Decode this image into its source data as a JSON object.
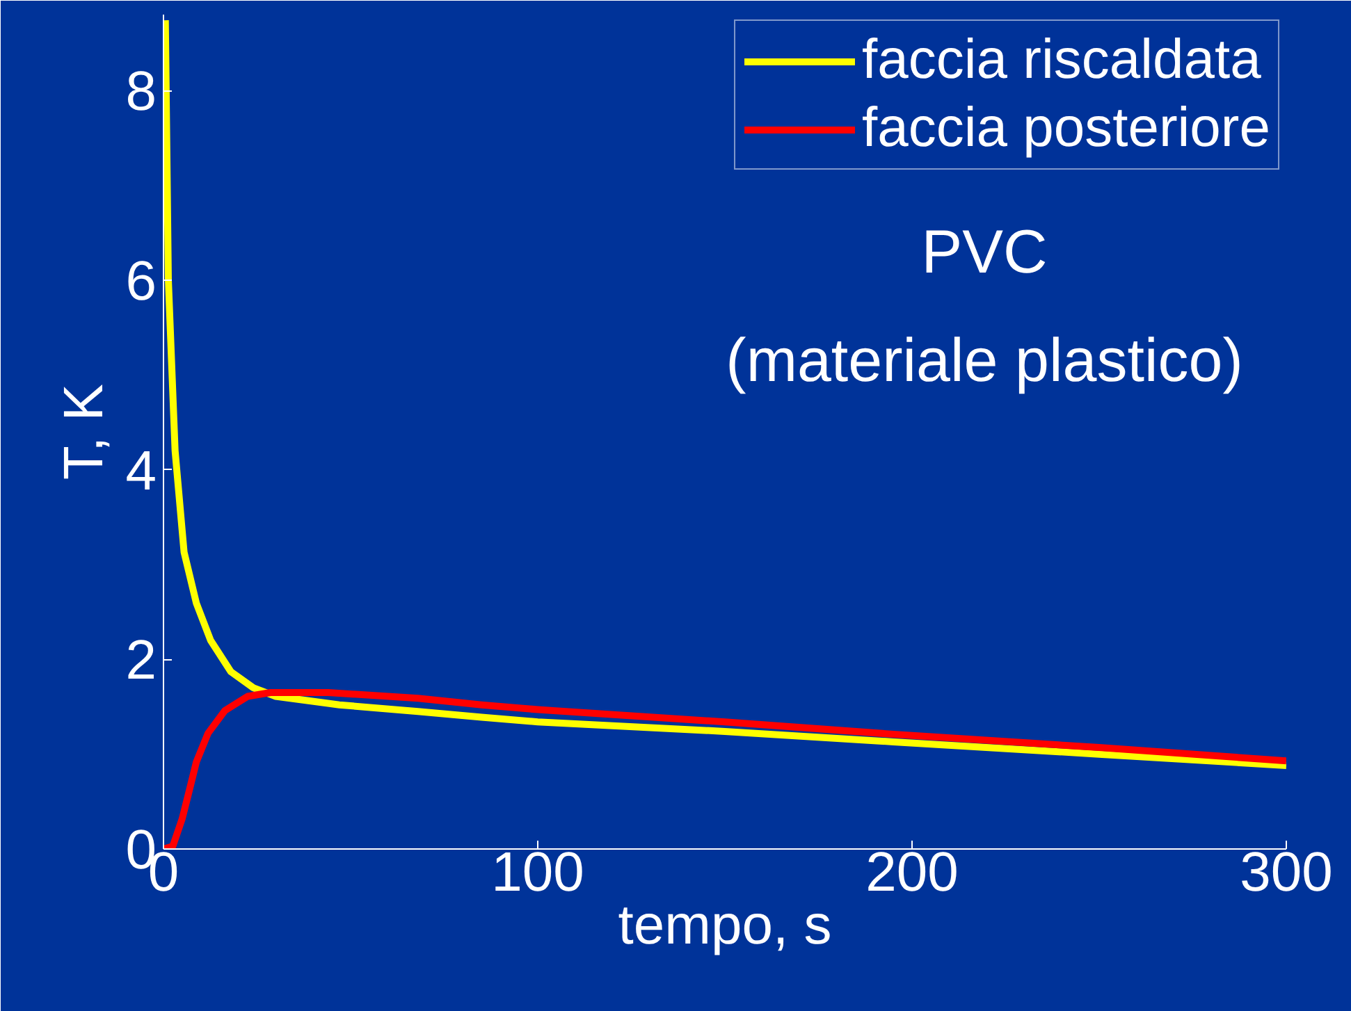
{
  "chart_data": {
    "type": "line",
    "xlabel": "tempo, s",
    "ylabel": "T, K",
    "annotations": [
      "PVC\n(materiale plastico)"
    ],
    "xlim": [
      0,
      300
    ],
    "ylim": [
      0,
      8.8
    ],
    "xticks": [
      0,
      100,
      200,
      300
    ],
    "yticks": [
      0,
      2,
      4,
      6,
      8
    ],
    "grid": false,
    "legend": "top right",
    "marker": "none",
    "line_style": "solid",
    "series": [
      {
        "name": "faccia riscaldata",
        "color": "#ffff00",
        "x": [
          0.5,
          1.3,
          3.1,
          5.5,
          8.8,
          12.6,
          18,
          24,
          30,
          47,
          68,
          85,
          100,
          150,
          195,
          250,
          300
        ],
        "values": [
          8.74,
          6.0,
          4.2,
          3.13,
          2.59,
          2.2,
          1.87,
          1.7,
          1.61,
          1.52,
          1.45,
          1.39,
          1.34,
          1.24,
          1.13,
          1.0,
          0.88
        ]
      },
      {
        "name": "faccia posteriore",
        "color": "#ff0000",
        "x": [
          0,
          2.5,
          5,
          6.6,
          8.8,
          11.9,
          16.4,
          22.5,
          28.6,
          44,
          68,
          85,
          100,
          150,
          195,
          250,
          300
        ],
        "values": [
          0,
          0.03,
          0.32,
          0.57,
          0.92,
          1.22,
          1.46,
          1.61,
          1.65,
          1.65,
          1.59,
          1.52,
          1.47,
          1.34,
          1.21,
          1.07,
          0.93
        ]
      }
    ]
  }
}
